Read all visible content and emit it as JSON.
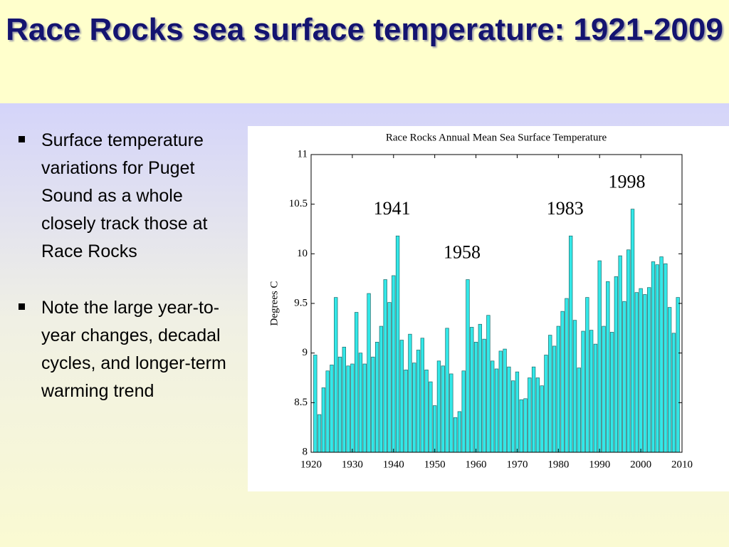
{
  "slide": {
    "title": "Race Rocks sea surface temperature: 1921-2009",
    "bullets": [
      "Surface temperature variations for Puget Sound as a whole closely track those at Race Rocks",
      "Note the large year-to-year changes, decadal cycles, and longer-term warming trend"
    ]
  },
  "chart_data": {
    "type": "bar",
    "title": "Race Rocks Annual Mean Sea Surface Temperature",
    "y_label": "Degrees C",
    "color": "#33e8e8",
    "x": [
      1921,
      1922,
      1923,
      1924,
      1925,
      1926,
      1927,
      1928,
      1929,
      1930,
      1931,
      1932,
      1933,
      1934,
      1935,
      1936,
      1937,
      1938,
      1939,
      1940,
      1941,
      1942,
      1943,
      1944,
      1945,
      1946,
      1947,
      1948,
      1949,
      1950,
      1951,
      1952,
      1953,
      1954,
      1955,
      1956,
      1957,
      1958,
      1959,
      1960,
      1961,
      1962,
      1963,
      1964,
      1965,
      1966,
      1967,
      1968,
      1969,
      1970,
      1971,
      1972,
      1973,
      1974,
      1975,
      1976,
      1977,
      1978,
      1979,
      1980,
      1981,
      1982,
      1983,
      1984,
      1985,
      1986,
      1987,
      1988,
      1989,
      1990,
      1991,
      1992,
      1993,
      1994,
      1995,
      1996,
      1997,
      1998,
      1999,
      2000,
      2001,
      2002,
      2003,
      2004,
      2005,
      2006,
      2007,
      2008,
      2009
    ],
    "values": [
      8.98,
      8.38,
      8.65,
      8.82,
      8.88,
      9.56,
      8.96,
      9.06,
      8.87,
      8.89,
      9.41,
      9.0,
      8.89,
      9.6,
      8.96,
      9.11,
      9.27,
      9.74,
      9.51,
      9.78,
      10.18,
      9.13,
      8.83,
      9.19,
      8.9,
      9.03,
      9.15,
      8.83,
      8.71,
      8.47,
      8.92,
      8.87,
      9.25,
      8.79,
      8.35,
      8.41,
      8.82,
      9.74,
      9.26,
      9.11,
      9.29,
      9.14,
      9.38,
      8.92,
      8.84,
      9.02,
      9.04,
      8.86,
      8.72,
      8.81,
      8.53,
      8.54,
      8.75,
      8.86,
      8.75,
      8.67,
      8.98,
      9.18,
      9.07,
      9.27,
      9.42,
      9.55,
      10.18,
      9.33,
      8.85,
      9.22,
      9.56,
      9.23,
      9.09,
      9.93,
      9.27,
      9.72,
      9.21,
      9.77,
      9.98,
      9.52,
      10.04,
      10.45,
      9.61,
      9.65,
      9.59,
      9.66,
      9.92,
      9.89,
      9.97,
      9.9,
      9.46,
      9.2,
      9.56
    ],
    "xlim": [
      1920,
      2010
    ],
    "xticks": [
      1920,
      1930,
      1940,
      1950,
      1960,
      1970,
      1980,
      1990,
      2000,
      2010
    ],
    "ylim": [
      8,
      11
    ],
    "yticks": [
      8,
      8.5,
      9,
      9.5,
      10,
      10.5,
      11
    ],
    "annotations": [
      {
        "text": "1941",
        "x": 1941
      },
      {
        "text": "1958",
        "x": 1958
      },
      {
        "text": "1983",
        "x": 1983
      },
      {
        "text": "1998",
        "x": 1998
      }
    ]
  }
}
